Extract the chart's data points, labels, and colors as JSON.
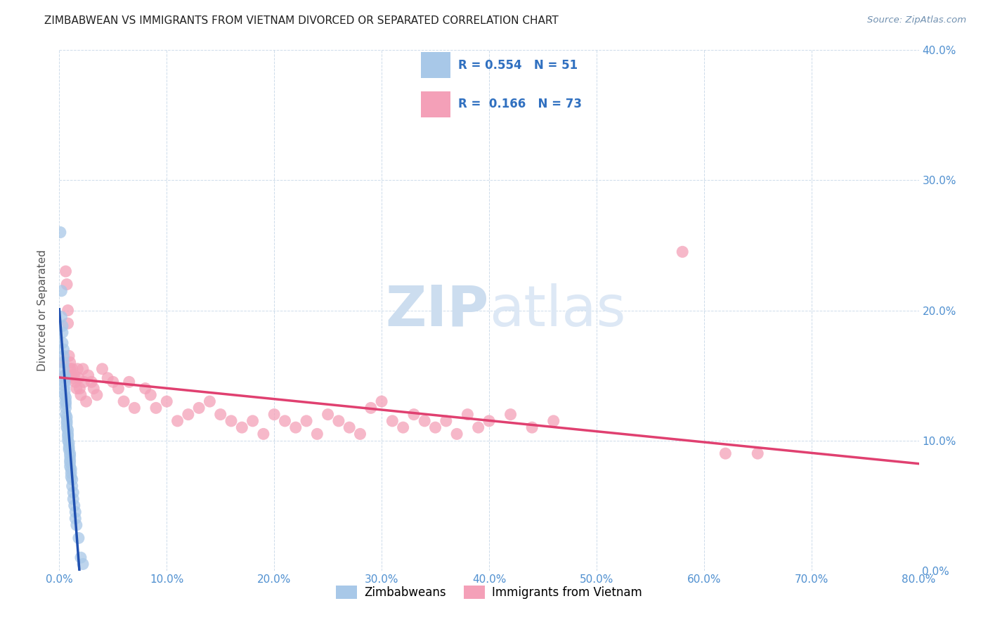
{
  "title": "ZIMBABWEAN VS IMMIGRANTS FROM VIETNAM DIVORCED OR SEPARATED CORRELATION CHART",
  "source": "Source: ZipAtlas.com",
  "ylabel": "Divorced or Separated",
  "xlim": [
    0,
    0.8
  ],
  "ylim": [
    0,
    0.4
  ],
  "xticks": [
    0.0,
    0.1,
    0.2,
    0.3,
    0.4,
    0.5,
    0.6,
    0.7,
    0.8
  ],
  "yticks": [
    0.0,
    0.1,
    0.2,
    0.3,
    0.4
  ],
  "legend_r1": "0.554",
  "legend_n1": "51",
  "legend_r2": "0.166",
  "legend_n2": "73",
  "color_blue": "#a8c8e8",
  "color_pink": "#f4a0b8",
  "color_line_blue": "#2050b0",
  "color_line_pink": "#e04070",
  "color_line_blue_dash": "#90b8e0",
  "watermark_zip": "ZIP",
  "watermark_atlas": "atlas",
  "watermark_color": "#ddeeff",
  "tick_color": "#5090d0",
  "zimbabwean_x": [
    0.001,
    0.002,
    0.002,
    0.003,
    0.003,
    0.003,
    0.004,
    0.004,
    0.004,
    0.004,
    0.005,
    0.005,
    0.005,
    0.005,
    0.005,
    0.005,
    0.006,
    0.006,
    0.006,
    0.006,
    0.006,
    0.007,
    0.007,
    0.007,
    0.007,
    0.008,
    0.008,
    0.008,
    0.008,
    0.009,
    0.009,
    0.009,
    0.01,
    0.01,
    0.01,
    0.01,
    0.01,
    0.011,
    0.011,
    0.011,
    0.012,
    0.012,
    0.013,
    0.013,
    0.014,
    0.015,
    0.015,
    0.016,
    0.018,
    0.02,
    0.022
  ],
  "zimbabwean_y": [
    0.26,
    0.215,
    0.195,
    0.188,
    0.183,
    0.175,
    0.17,
    0.165,
    0.16,
    0.155,
    0.15,
    0.148,
    0.145,
    0.142,
    0.138,
    0.135,
    0.133,
    0.13,
    0.128,
    0.125,
    0.12,
    0.118,
    0.115,
    0.113,
    0.11,
    0.108,
    0.105,
    0.103,
    0.1,
    0.098,
    0.095,
    0.093,
    0.09,
    0.088,
    0.085,
    0.083,
    0.08,
    0.078,
    0.075,
    0.072,
    0.07,
    0.065,
    0.06,
    0.055,
    0.05,
    0.045,
    0.04,
    0.035,
    0.025,
    0.01,
    0.005
  ],
  "vietnam_x": [
    0.003,
    0.005,
    0.006,
    0.007,
    0.008,
    0.008,
    0.009,
    0.01,
    0.01,
    0.011,
    0.012,
    0.013,
    0.014,
    0.015,
    0.016,
    0.017,
    0.018,
    0.019,
    0.02,
    0.022,
    0.023,
    0.025,
    0.027,
    0.03,
    0.032,
    0.035,
    0.04,
    0.045,
    0.05,
    0.055,
    0.06,
    0.065,
    0.07,
    0.08,
    0.085,
    0.09,
    0.1,
    0.11,
    0.12,
    0.13,
    0.14,
    0.15,
    0.16,
    0.17,
    0.18,
    0.19,
    0.2,
    0.21,
    0.22,
    0.23,
    0.24,
    0.25,
    0.26,
    0.27,
    0.28,
    0.29,
    0.3,
    0.31,
    0.32,
    0.33,
    0.34,
    0.35,
    0.36,
    0.37,
    0.38,
    0.39,
    0.4,
    0.42,
    0.44,
    0.46,
    0.58,
    0.62,
    0.65
  ],
  "vietnam_y": [
    0.16,
    0.15,
    0.23,
    0.22,
    0.2,
    0.19,
    0.165,
    0.16,
    0.155,
    0.15,
    0.155,
    0.148,
    0.15,
    0.145,
    0.14,
    0.155,
    0.148,
    0.14,
    0.135,
    0.155,
    0.145,
    0.13,
    0.15,
    0.145,
    0.14,
    0.135,
    0.155,
    0.148,
    0.145,
    0.14,
    0.13,
    0.145,
    0.125,
    0.14,
    0.135,
    0.125,
    0.13,
    0.115,
    0.12,
    0.125,
    0.13,
    0.12,
    0.115,
    0.11,
    0.115,
    0.105,
    0.12,
    0.115,
    0.11,
    0.115,
    0.105,
    0.12,
    0.115,
    0.11,
    0.105,
    0.125,
    0.13,
    0.115,
    0.11,
    0.12,
    0.115,
    0.11,
    0.115,
    0.105,
    0.12,
    0.11,
    0.115,
    0.12,
    0.11,
    0.115,
    0.245,
    0.09,
    0.09
  ]
}
